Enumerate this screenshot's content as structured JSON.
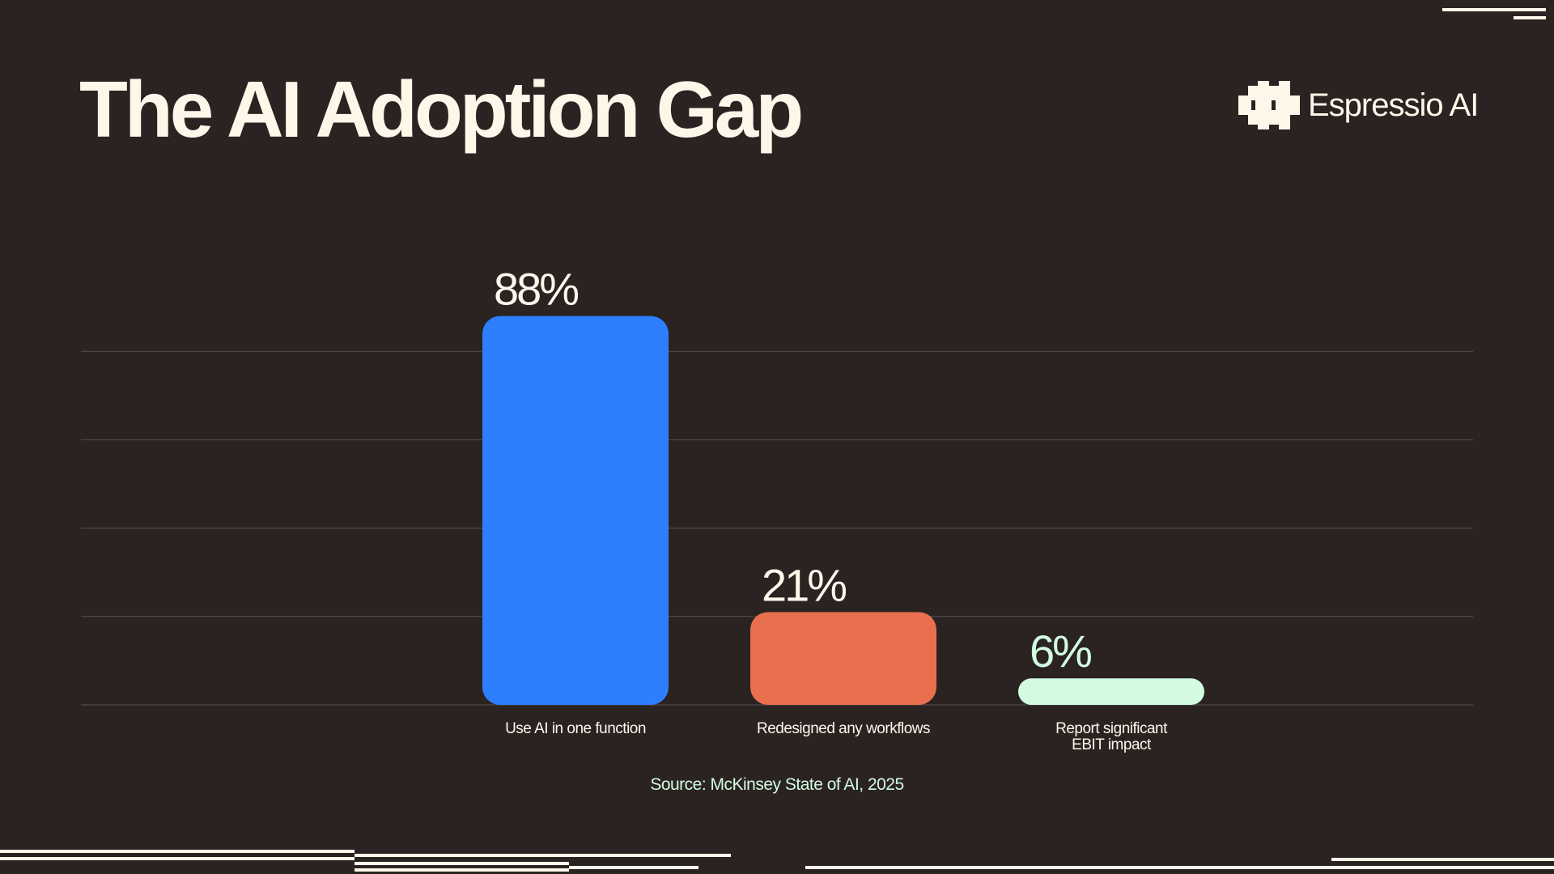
{
  "title": "The AI Adoption Gap",
  "brand": {
    "name": "Espressio AI",
    "icon": "espressio-logo-icon"
  },
  "source": "Source: McKinsey State of AI, 2025",
  "colors": {
    "background": "#2b2322",
    "text": "#fdf7ea",
    "grid": "#5a504e",
    "source_text": "#d2fbe0"
  },
  "chart_data": {
    "type": "bar",
    "categories": [
      "Use AI in one function",
      "Redesigned any workflows",
      "Report significant EBIT impact"
    ],
    "category_lines": [
      [
        "Use AI in one function"
      ],
      [
        "Redesigned any workflows"
      ],
      [
        "Report significant",
        "EBIT impact"
      ]
    ],
    "values": [
      88,
      21,
      6
    ],
    "value_labels": [
      "88%",
      "21%",
      "6%"
    ],
    "unit": "%",
    "bar_colors": [
      "#2d7ffe",
      "#e9704f",
      "#d2fbe0"
    ],
    "label_colors": [
      "#fdf7ea",
      "#fdf7ea",
      "#d2fbe0"
    ],
    "ylim": [
      0,
      100
    ],
    "grid": true,
    "legend": "none"
  }
}
